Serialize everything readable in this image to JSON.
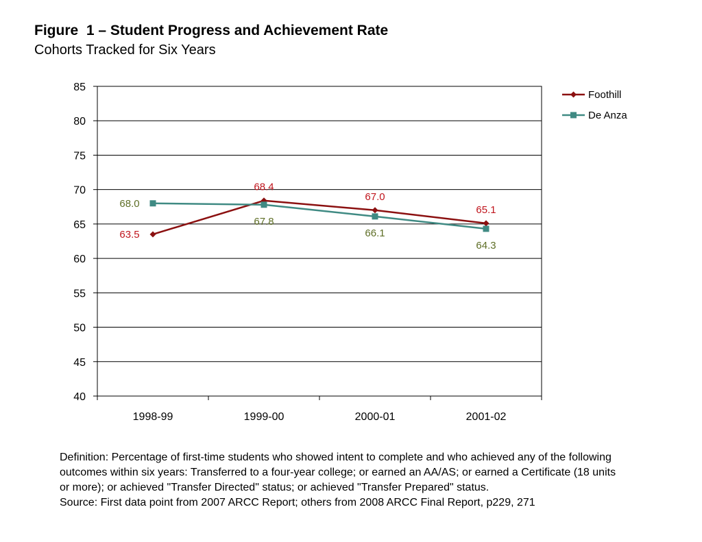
{
  "figure": {
    "title": "Figure  1 – Student Progress and Achievement Rate",
    "subtitle": "Cohorts Tracked for Six Years"
  },
  "chart_data": {
    "type": "line",
    "categories": [
      "1998-99",
      "1999-00",
      "2000-01",
      "2001-02"
    ],
    "series": [
      {
        "name": "Foothill",
        "values": [
          63.5,
          68.4,
          67.0,
          65.1
        ],
        "labels": [
          "63.5",
          "68.4",
          "67.0",
          "65.1"
        ],
        "color": "#8B1010",
        "label_color": "#C0141C",
        "marker": "diamond"
      },
      {
        "name": "De Anza",
        "values": [
          68.0,
          67.8,
          66.1,
          64.3
        ],
        "labels": [
          "68.0",
          "67.8",
          "66.1",
          "64.3"
        ],
        "color": "#3F8A83",
        "label_color": "#5E6E26",
        "marker": "square"
      }
    ],
    "ylim": [
      40,
      85
    ],
    "ytick_values": [
      40,
      45,
      50,
      55,
      60,
      65,
      70,
      75,
      80,
      85
    ],
    "ytick_labels": [
      "40",
      "45",
      "50",
      "55",
      "60",
      "65",
      "70",
      "75",
      "80",
      "85"
    ],
    "xlabel": "",
    "ylabel": "",
    "grid": true,
    "legend": "right"
  },
  "footnote": {
    "definition": "Definition: Percentage of first-time students who showed intent to complete and who achieved any of the following outcomes within six years: Transferred to a four-year college; or earned an AA/AS; or earned a Certificate (18 units or more); or achieved \"Transfer Directed\" status; or achieved \"Transfer Prepared\" status.",
    "source": "Source: First data point from 2007 ARCC Report; others from 2008 ARCC Final Report, p229, 271"
  }
}
